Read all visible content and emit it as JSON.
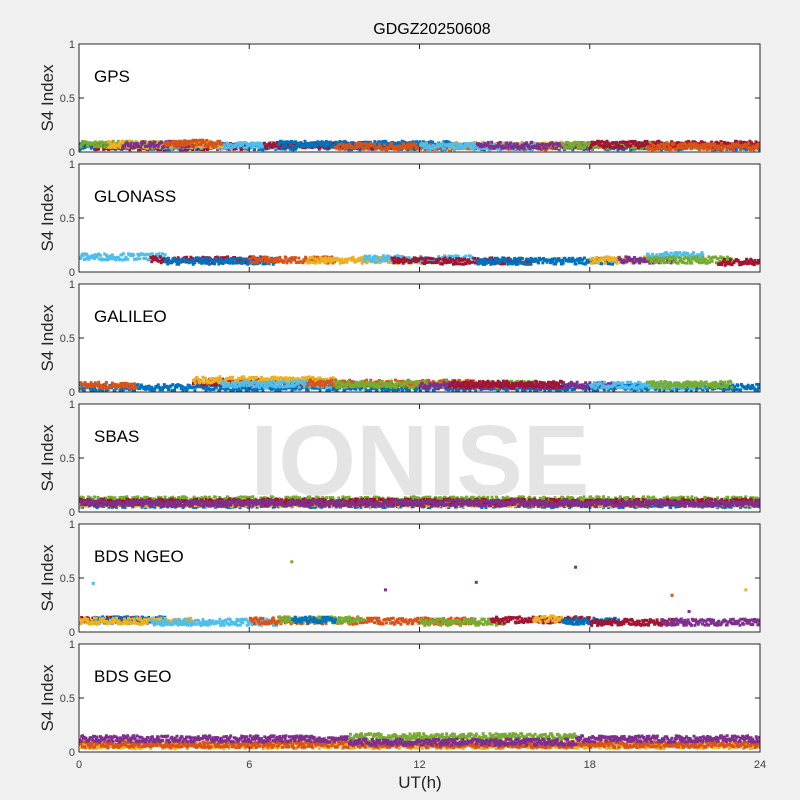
{
  "chart_data": {
    "type": "scatter",
    "title": "GDGZ20250608",
    "xlabel": "UT(h)",
    "ylabel": "S4 Index",
    "xlim": [
      0,
      24
    ],
    "ylim": [
      0,
      1
    ],
    "xticks": [
      "0",
      "6",
      "12",
      "18",
      "24"
    ],
    "yticks": [
      "0",
      "0.5",
      "1"
    ],
    "watermark": "IONISE",
    "colors": {
      "blue": "#0072BD",
      "orange": "#D95319",
      "yellow": "#EDB120",
      "purple": "#7E2F8E",
      "green": "#77AC30",
      "cyan": "#4DBEEE",
      "red": "#A2142F"
    },
    "panels": [
      {
        "label": "GPS",
        "segments": [
          [
            "blue",
            0,
            24,
            0.06
          ],
          [
            "red",
            0.5,
            6,
            0.06
          ],
          [
            "green",
            0,
            4,
            0.08
          ],
          [
            "cyan",
            2,
            7,
            0.07
          ],
          [
            "yellow",
            1,
            5,
            0.08
          ],
          [
            "purple",
            1.5,
            4,
            0.08
          ],
          [
            "orange",
            3,
            5,
            0.09
          ],
          [
            "red",
            6.5,
            11,
            0.07
          ],
          [
            "blue",
            7,
            13,
            0.08
          ],
          [
            "orange",
            9,
            17,
            0.06
          ],
          [
            "yellow",
            13,
            18,
            0.07
          ],
          [
            "cyan",
            12,
            16,
            0.06
          ],
          [
            "purple",
            14,
            20,
            0.07
          ],
          [
            "green",
            17,
            22,
            0.07
          ],
          [
            "red",
            18,
            24,
            0.08
          ],
          [
            "orange",
            20,
            24,
            0.06
          ]
        ]
      },
      {
        "label": "GLONASS",
        "segments": [
          [
            "cyan",
            0,
            3,
            0.15
          ],
          [
            "red",
            2.5,
            6.5,
            0.12
          ],
          [
            "blue",
            3,
            7,
            0.11
          ],
          [
            "orange",
            6,
            9,
            0.12
          ],
          [
            "yellow",
            8,
            12,
            0.12
          ],
          [
            "cyan",
            10,
            14,
            0.13
          ],
          [
            "red",
            11,
            16,
            0.11
          ],
          [
            "blue",
            14,
            19,
            0.11
          ],
          [
            "yellow",
            18,
            20,
            0.12
          ],
          [
            "purple",
            19,
            21,
            0.12
          ],
          [
            "cyan",
            20,
            22,
            0.16
          ],
          [
            "green",
            20,
            23,
            0.12
          ],
          [
            "red",
            22.5,
            24,
            0.1
          ]
        ]
      },
      {
        "label": "GALILEO",
        "segments": [
          [
            "blue",
            0,
            24,
            0.05
          ],
          [
            "orange",
            0,
            2,
            0.07
          ],
          [
            "red",
            4,
            9,
            0.1
          ],
          [
            "yellow",
            4,
            9,
            0.12
          ],
          [
            "cyan",
            5,
            10,
            0.08
          ],
          [
            "orange",
            8,
            14,
            0.09
          ],
          [
            "green",
            9,
            16,
            0.08
          ],
          [
            "purple",
            12,
            19,
            0.07
          ],
          [
            "red",
            13,
            17,
            0.08
          ],
          [
            "cyan",
            18,
            22,
            0.07
          ],
          [
            "green",
            20,
            23,
            0.08
          ]
        ]
      },
      {
        "label": "SBAS",
        "segments": [
          [
            "blue",
            0,
            24,
            0.08
          ],
          [
            "yellow",
            0,
            24,
            0.09
          ],
          [
            "green",
            0,
            24,
            0.12
          ],
          [
            "red",
            0,
            24,
            0.1
          ],
          [
            "purple",
            0,
            24,
            0.09
          ]
        ]
      },
      {
        "label": "BDS NGEO",
        "segments": [
          [
            "red",
            0,
            2.5,
            0.12
          ],
          [
            "blue",
            0.5,
            3,
            0.12
          ],
          [
            "yellow",
            0,
            4,
            0.11
          ],
          [
            "cyan",
            2.5,
            7,
            0.1
          ],
          [
            "orange",
            6,
            14,
            0.11
          ],
          [
            "green",
            7,
            10,
            0.12
          ],
          [
            "blue",
            7.5,
            9,
            0.12
          ],
          [
            "green",
            12,
            15,
            0.1
          ],
          [
            "red",
            14.5,
            18,
            0.12
          ],
          [
            "yellow",
            16,
            17,
            0.13
          ],
          [
            "blue",
            17,
            19,
            0.11
          ],
          [
            "red",
            18,
            21,
            0.1
          ],
          [
            "purple",
            20.5,
            24,
            0.1
          ]
        ],
        "outliers": [
          [
            0.5,
            0.45,
            "cyan"
          ],
          [
            7.5,
            0.65,
            "green"
          ],
          [
            10.8,
            0.39,
            "purple"
          ],
          [
            14,
            0.46,
            "purple"
          ],
          [
            17.5,
            0.6,
            "purple"
          ],
          [
            20.9,
            0.34,
            "orange"
          ],
          [
            23.5,
            0.39,
            "yellow"
          ],
          [
            21.5,
            0.19,
            "purple"
          ]
        ]
      },
      {
        "label": "BDS GEO",
        "segments": [
          [
            "yellow",
            0,
            24,
            0.07
          ],
          [
            "orange",
            0,
            24,
            0.08
          ],
          [
            "purple",
            0,
            9.5,
            0.13
          ],
          [
            "green",
            9.5,
            17.5,
            0.15
          ],
          [
            "purple",
            17.5,
            24,
            0.13
          ],
          [
            "purple",
            9.5,
            17.5,
            0.1
          ]
        ]
      }
    ]
  }
}
